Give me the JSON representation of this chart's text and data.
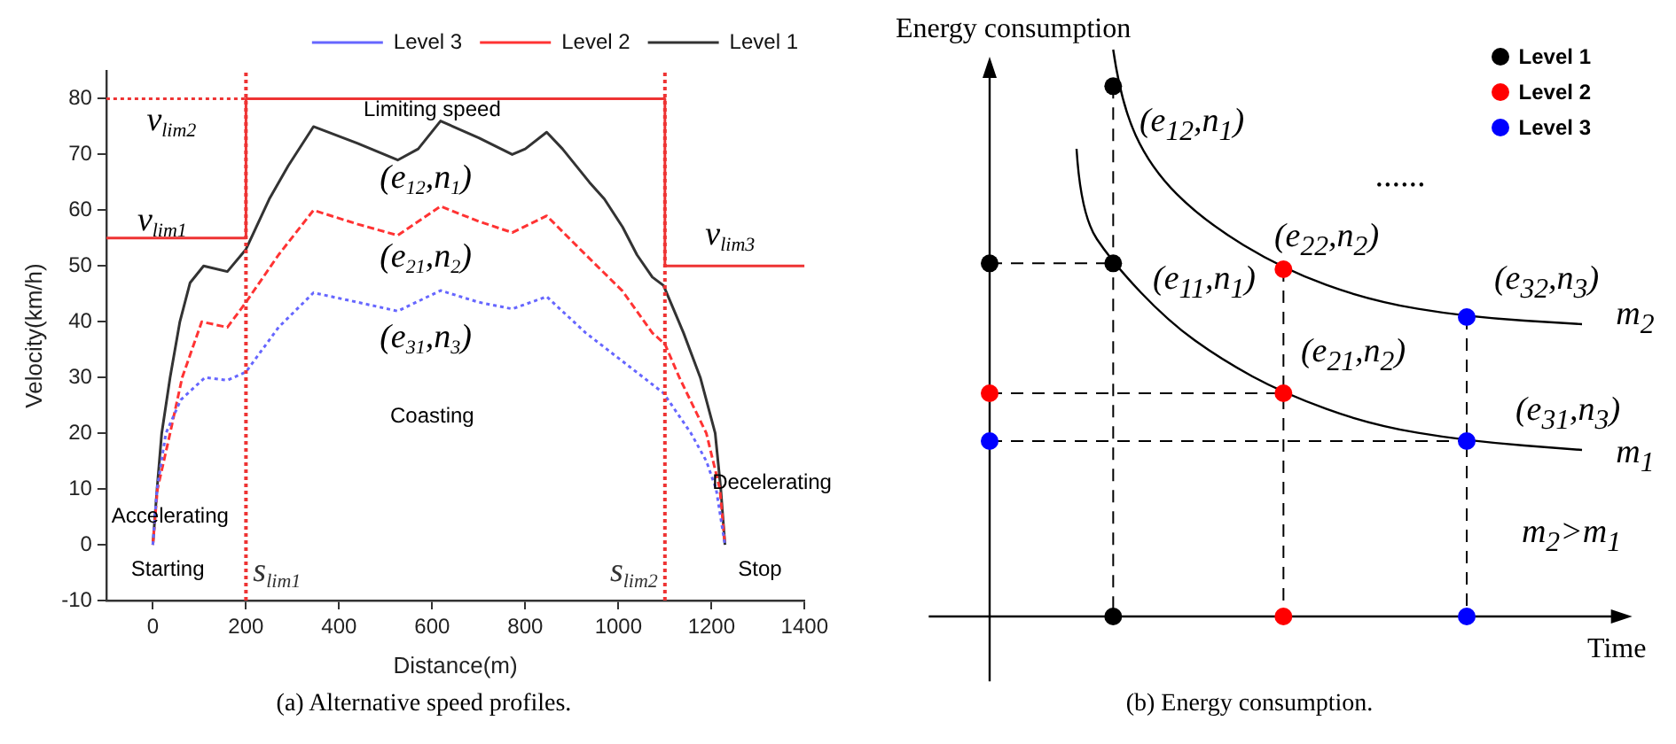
{
  "chart_data": [
    {
      "type": "line",
      "title": "(a) Alternative speed profiles.",
      "xlabel": "Distance(m)",
      "ylabel": "Velocity(km/h)",
      "xlim": [
        -100,
        1400
      ],
      "xticks": [
        0,
        200,
        400,
        600,
        800,
        1000,
        1200,
        1400
      ],
      "ylim": [
        -10,
        85
      ],
      "yticks": [
        -10,
        0,
        10,
        20,
        30,
        40,
        50,
        60,
        70,
        80
      ],
      "legend": "top right",
      "series": [
        {
          "name": "Level 1",
          "color": "#333333",
          "line_style": "solid",
          "x": [
            0,
            9,
            19,
            37,
            58,
            80,
            109,
            160,
            200,
            250,
            291,
            345,
            440,
            526,
            570,
            618,
            700,
            772,
            800,
            846,
            880,
            938,
            970,
            1009,
            1040,
            1073,
            1097,
            1140,
            1176,
            1208,
            1220,
            1229
          ],
          "values": [
            0,
            10,
            20,
            30,
            40,
            47,
            50,
            49,
            53,
            62,
            68,
            75,
            72,
            69,
            71,
            76,
            73,
            70,
            71,
            74,
            71,
            65,
            62,
            57,
            52,
            48,
            46.5,
            38,
            30,
            20,
            10,
            0
          ]
        },
        {
          "name": "Level 2",
          "color": "#ff3333",
          "line_style": "dashed",
          "x": [
            0,
            10,
            37,
            63,
            105,
            160,
            200,
            270,
            345,
            440,
            526,
            618,
            700,
            772,
            846,
            930,
            1009,
            1073,
            1100,
            1131,
            1189,
            1218,
            1229
          ],
          "values": [
            0,
            10,
            20,
            30,
            40,
            39,
            43.5,
            52,
            60,
            57.5,
            55.5,
            60.7,
            58,
            56,
            59,
            52,
            45.5,
            38,
            36,
            30,
            20,
            10,
            0
          ]
        },
        {
          "name": "Level 3",
          "color": "#6666ff",
          "line_style": "dotted",
          "x": [
            0,
            9,
            28,
            60,
            112,
            160,
            200,
            270,
            345,
            440,
            526,
            618,
            700,
            772,
            846,
            930,
            1054,
            1097,
            1156,
            1189,
            1210,
            1229
          ],
          "values": [
            0,
            10,
            20,
            26,
            30,
            29.5,
            31,
            39,
            45.2,
            43.5,
            41.9,
            45.6,
            43.5,
            42.3,
            44.5,
            38,
            30,
            27.2,
            20,
            15,
            10,
            0
          ]
        },
        {
          "type": "step",
          "color": "#ee3333",
          "line_style": "solid",
          "x": [
            -100,
            200,
            1100,
            1400
          ],
          "values": [
            55,
            80,
            50,
            50
          ]
        },
        {
          "type": "line",
          "color": "#ee3333",
          "line_style": "dotted",
          "x": [
            -100,
            200
          ],
          "values": [
            80,
            80
          ]
        }
      ],
      "ref_lines": [
        {
          "axis": "x",
          "value": 200,
          "label": "s$_{lim1}$",
          "color": "#ee3333",
          "line_style": "dotted"
        },
        {
          "axis": "x",
          "value": 1100,
          "label": "s$_{lim2}$",
          "color": "#ee3333",
          "line_style": "dotted"
        }
      ],
      "annotations": [
        "Limiting speed",
        "v$_{lim2}$",
        "v$_{lim1}$",
        "v$_{lim3}$",
        "(e$_{12}$,n$_{1}$)",
        "(e$_{21}$,n$_{2}$)",
        "(e$_{31}$,n$_{3}$)",
        "Coasting",
        "Accelerating",
        "Decelerating",
        "Starting",
        "Stop"
      ]
    },
    {
      "type": "other",
      "title": "(b) Energy consumption.",
      "xlabel": "Time",
      "ylabel": "Energy consumption",
      "legend": "top right",
      "series": [
        {
          "name": "Level 1",
          "color": "#000000"
        },
        {
          "name": "Level 2",
          "color": "#ff0000"
        },
        {
          "name": "Level 3",
          "color": "#0000ff"
        }
      ],
      "annotations": [
        "(e$_{12}$,n$_{1}$)",
        "(e$_{22}$,n$_{2}$)",
        "(e$_{11}$,n$_{1}$)",
        "(e$_{32}$,n$_{3}$)",
        "(e$_{21}$,n$_{2}$)",
        "(e$_{31}$,n$_{3}$)",
        "......",
        "m$_{2}$",
        "m$_{1}$",
        "m$_{2}$>m$_{1}$"
      ]
    }
  ]
}
